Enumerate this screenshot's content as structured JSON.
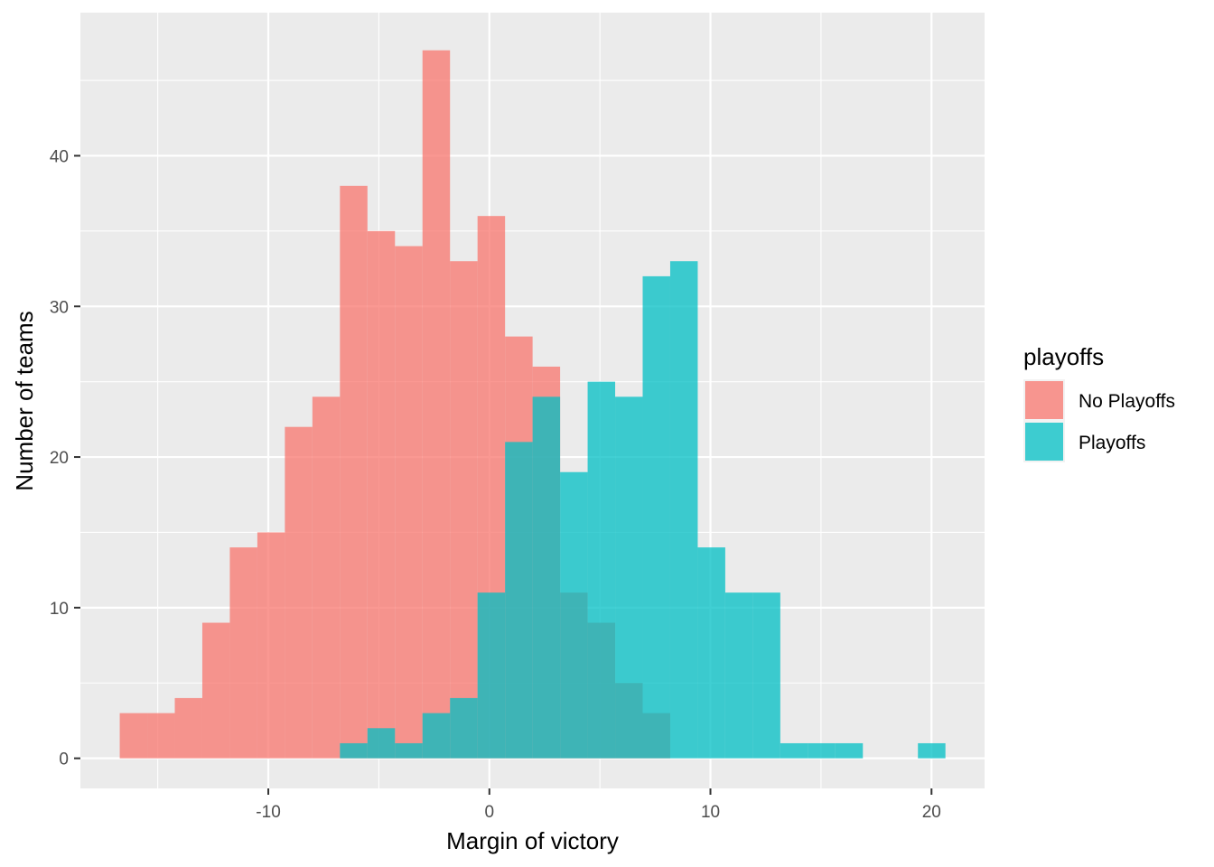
{
  "chart_data": {
    "type": "histogram",
    "title": "",
    "xlabel": "Margin of victory",
    "ylabel": "Number of teams",
    "xlim": [
      -18.5,
      22.4
    ],
    "ylim": [
      -2.0,
      49.5
    ],
    "bin_width": 1.245,
    "x_ticks": [
      -10,
      0,
      10,
      20
    ],
    "x_tick_labels": [
      "-10",
      "0",
      "10",
      "20"
    ],
    "y_ticks": [
      0,
      10,
      20,
      30,
      40
    ],
    "y_tick_labels": [
      "0",
      "10",
      "20",
      "30",
      "40"
    ],
    "grid": true,
    "legend": {
      "title": "playoffs",
      "position": "right"
    },
    "series": [
      {
        "name": "No Playoffs",
        "color": "#F8766D",
        "bin_starts": [
          -16.72,
          -15.475,
          -14.23,
          -12.985,
          -11.74,
          -10.495,
          -9.25,
          -8.005,
          -6.76,
          -5.515,
          -4.27,
          -3.025,
          -1.78,
          -0.535,
          0.71,
          1.955,
          3.2,
          4.445,
          5.69,
          6.935
        ],
        "counts": [
          3,
          3,
          4,
          9,
          14,
          15,
          22,
          24,
          38,
          35,
          34,
          47,
          33,
          36,
          28,
          26,
          11,
          9,
          5,
          3
        ]
      },
      {
        "name": "Playoffs",
        "color": "#00BFC4",
        "bin_starts": [
          -6.76,
          -5.515,
          -4.27,
          -3.025,
          -1.78,
          -0.535,
          0.71,
          1.955,
          3.2,
          4.445,
          5.69,
          6.935,
          8.18,
          9.425,
          10.67,
          11.915,
          13.16,
          14.405,
          15.65,
          16.895,
          18.14,
          19.385
        ],
        "counts": [
          1,
          2,
          1,
          3,
          4,
          11,
          21,
          24,
          19,
          25,
          24,
          32,
          33,
          14,
          11,
          11,
          1,
          1,
          1,
          0,
          0,
          1
        ]
      }
    ]
  }
}
